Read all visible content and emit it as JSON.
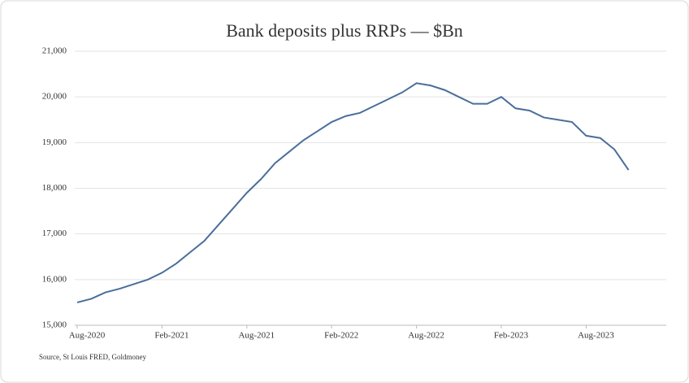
{
  "chart_data": {
    "type": "line",
    "title": "Bank deposits plus RRPs — $Bn",
    "source": "Source, St Louis FRED, Goldmoney",
    "categories": [
      "Aug-2020",
      null,
      null,
      null,
      null,
      null,
      "Feb-2021",
      null,
      null,
      null,
      null,
      null,
      "Aug-2021",
      null,
      null,
      null,
      null,
      null,
      "Feb-2022",
      null,
      null,
      null,
      null,
      null,
      "Aug-2022",
      null,
      null,
      null,
      null,
      null,
      "Feb-2023",
      null,
      null,
      null,
      null,
      null,
      "Aug-2023",
      null,
      null,
      null
    ],
    "values": [
      15500,
      15580,
      15720,
      15800,
      15900,
      16000,
      16150,
      16350,
      16600,
      16850,
      17200,
      17550,
      17900,
      18200,
      18550,
      18800,
      19050,
      19250,
      19450,
      19580,
      19650,
      19800,
      19950,
      20100,
      20300,
      20250,
      20150,
      20000,
      19850,
      19850,
      20000,
      19750,
      19700,
      19550,
      19500,
      19450,
      19150,
      19100,
      18850,
      18400
    ],
    "color": "#4a6e9b",
    "ylim": [
      15000,
      21000
    ],
    "yticks": [
      {
        "value": 15000,
        "label": "15,000"
      },
      {
        "value": 16000,
        "label": "16,000"
      },
      {
        "value": 17000,
        "label": "17,000"
      },
      {
        "value": 18000,
        "label": "18,000"
      },
      {
        "value": 19000,
        "label": "19,000"
      },
      {
        "value": 20000,
        "label": "20,000"
      },
      {
        "value": 21000,
        "label": "21,000"
      }
    ],
    "grid": true
  }
}
